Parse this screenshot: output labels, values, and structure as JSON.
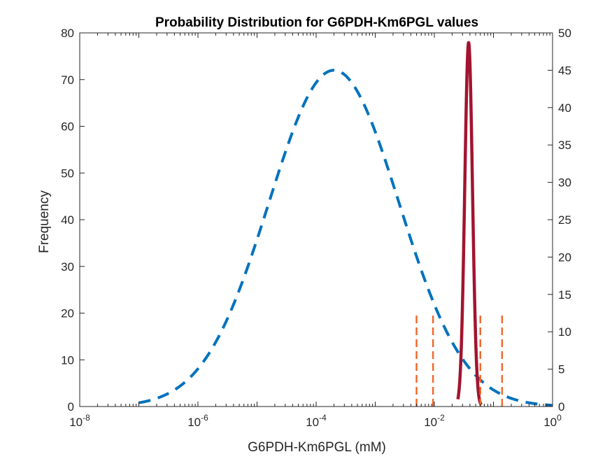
{
  "chart_data": {
    "type": "line",
    "title": "Probability Distribution for G6PDH-Km6PGL values",
    "xlabel": "G6PDH-Km6PGL (mM)",
    "ylabel": "Frequency",
    "ylabel_right": "",
    "x_scale": "log",
    "xlim": [
      1e-08,
      1
    ],
    "x_ticks": [
      {
        "base": "10",
        "exp": "-8"
      },
      {
        "base": "10",
        "exp": "-6"
      },
      {
        "base": "10",
        "exp": "-4"
      },
      {
        "base": "10",
        "exp": "-2"
      },
      {
        "base": "10",
        "exp": "0"
      }
    ],
    "ylim_left": [
      0,
      80
    ],
    "y_ticks_left": [
      "0",
      "10",
      "20",
      "30",
      "40",
      "50",
      "60",
      "70",
      "80"
    ],
    "ylim_right": [
      0,
      50
    ],
    "y_ticks_right": [
      "0",
      "5",
      "10",
      "15",
      "20",
      "25",
      "30",
      "35",
      "40",
      "45",
      "50"
    ],
    "grid": false,
    "legend": "none",
    "series": [
      {
        "style": "dashed",
        "color": "#0072BD",
        "axis": "right",
        "distribution": "lognormal",
        "peak_x": 0.0002,
        "peak_y": 45,
        "sigma_log10": 1.1,
        "x_range": [
          1e-07,
          1
        ]
      },
      {
        "style": "solid",
        "color": "#A2142F",
        "axis": "right",
        "distribution": "lognormal",
        "peak_x": 0.038,
        "peak_y": 48.7,
        "sigma_log10": 0.065,
        "x_range": [
          0.025,
          0.062
        ]
      }
    ],
    "vertical_markers": {
      "style": "dashed",
      "color": "#EE6A2E",
      "axis": "left",
      "height": 20,
      "x": [
        0.005,
        0.0095,
        0.06,
        0.14
      ]
    }
  }
}
